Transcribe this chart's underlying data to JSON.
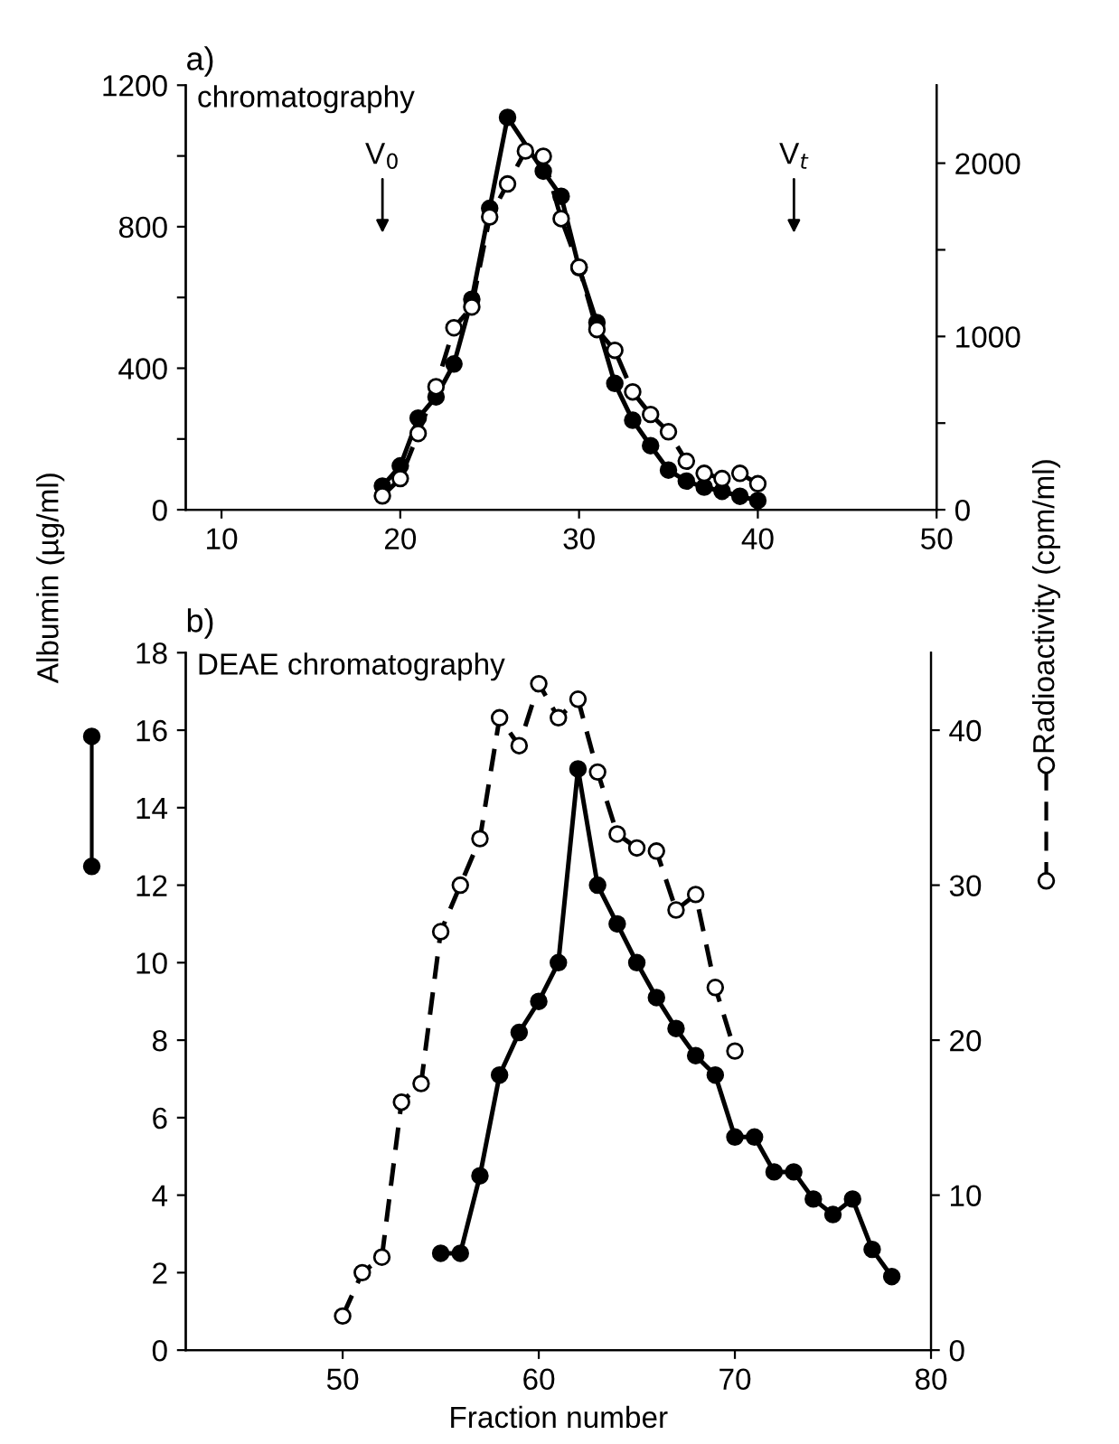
{
  "chart_data": [
    {
      "type": "line",
      "title": "a)",
      "subtitle": "chromatography",
      "xlim": [
        8,
        50
      ],
      "xticks": [
        10,
        20,
        30,
        40,
        50
      ],
      "ylim": [
        0,
        1200
      ],
      "yticks": [
        0,
        {
          "value": 200,
          "label": null
        },
        400,
        {
          "value": 600,
          "label": null
        },
        800,
        {
          "value": 1000,
          "label": null
        },
        1200
      ],
      "y2lim": [
        0,
        2450
      ],
      "y2ticks": [
        0,
        {
          "value": 500,
          "label": null
        },
        1000,
        {
          "value": 1500,
          "label": null
        },
        2000
      ],
      "marker": "circle",
      "grid": false,
      "legend": false,
      "annotations": [
        "V$_{0}$",
        "V$_{t}$"
      ],
      "series": [
        {
          "color": "#000000",
          "line_style": "solid",
          "x": [
            19,
            20,
            21,
            22,
            23,
            24,
            25,
            26,
            28,
            29,
            30,
            31,
            32,
            33,
            34,
            35,
            36,
            37,
            38,
            39,
            40
          ],
          "values": [
            67,
            124,
            259,
            319,
            412,
            595,
            852,
            1109,
            957,
            886,
            684,
            529,
            357,
            253,
            181,
            112,
            81,
            64,
            52,
            38,
            26
          ]
        },
        {
          "color": "#000000",
          "line_style": "dashed",
          "axis": "y2",
          "x": [
            19,
            20,
            21,
            22,
            23,
            24,
            25,
            26,
            27,
            28,
            29,
            30,
            31,
            32,
            33,
            34,
            35,
            36,
            37,
            38,
            39,
            40
          ],
          "values": [
            80,
            180,
            440,
            710,
            1050,
            1170,
            1690,
            1880,
            2070,
            2040,
            1680,
            1400,
            1040,
            920,
            680,
            550,
            450,
            280,
            210,
            180,
            210,
            150
          ]
        }
      ]
    },
    {
      "type": "line",
      "title": "b)",
      "subtitle": "DEAE chromatography",
      "xlabel": "Fraction number",
      "ylabel": "Albumin (µg/ml)",
      "y2label": "Radioactivity (cpm/ml)",
      "xlim": [
        42,
        80
      ],
      "xticks": [
        50,
        60,
        70,
        80
      ],
      "ylim": [
        0,
        18
      ],
      "yticks": [
        0,
        2,
        4,
        6,
        8,
        10,
        12,
        14,
        16,
        18
      ],
      "y2lim": [
        0,
        45
      ],
      "y2ticks": [
        0,
        10,
        20,
        30,
        40
      ],
      "marker": "circle",
      "grid": false,
      "legend": false,
      "series": [
        {
          "color": "#000000",
          "line_style": "solid",
          "x": [
            55,
            56,
            57,
            58,
            59,
            60,
            61,
            62,
            63,
            64,
            65,
            66,
            67,
            68,
            69,
            70,
            71,
            72,
            73,
            74,
            75,
            76,
            77,
            78
          ],
          "values": [
            2.5,
            2.5,
            4.5,
            7.1,
            8.2,
            9.0,
            10.0,
            15.0,
            12.0,
            11.0,
            10.0,
            9.1,
            8.3,
            7.6,
            7.1,
            5.5,
            5.5,
            4.6,
            4.6,
            3.9,
            3.5,
            3.9,
            2.6,
            1.9
          ]
        },
        {
          "color": "#000000",
          "line_style": "dashed",
          "axis": "y2",
          "x": [
            50,
            51,
            52,
            53,
            54,
            55,
            56,
            57,
            58,
            59,
            60,
            61,
            62,
            63,
            64,
            65,
            66,
            67,
            68,
            69,
            70
          ],
          "values": [
            2.2,
            5,
            6,
            16,
            17.2,
            27,
            30,
            33,
            40.8,
            39,
            43,
            40.8,
            42,
            37.3,
            33.3,
            32.4,
            32.2,
            28.4,
            29.4,
            23.4,
            19.3
          ]
        }
      ]
    }
  ]
}
